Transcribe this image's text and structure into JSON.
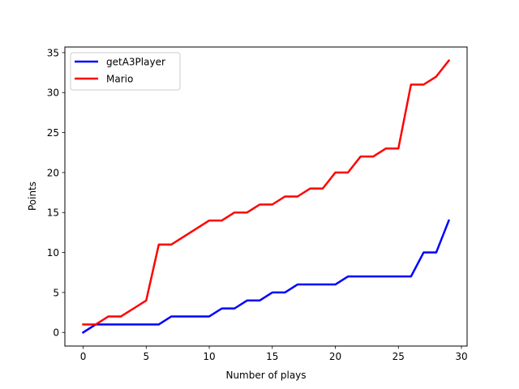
{
  "chart_data": {
    "type": "line",
    "xlabel": "Number of plays",
    "ylabel": "Points",
    "xlim": [
      -1.45,
      30.45
    ],
    "ylim": [
      -1.7,
      35.7
    ],
    "xticks": [
      0,
      5,
      10,
      15,
      20,
      25,
      30
    ],
    "yticks": [
      0,
      5,
      10,
      15,
      20,
      25,
      30,
      35
    ],
    "grid": false,
    "legend_position": "top-left",
    "x": [
      0,
      1,
      2,
      3,
      4,
      5,
      6,
      7,
      8,
      9,
      10,
      11,
      12,
      13,
      14,
      15,
      16,
      17,
      18,
      19,
      20,
      21,
      22,
      23,
      24,
      25,
      26,
      27,
      28,
      29
    ],
    "series": [
      {
        "name": "getA3Player",
        "color": "#0000ff",
        "values": [
          0,
          1,
          1,
          1,
          1,
          1,
          1,
          2,
          2,
          2,
          2,
          3,
          3,
          4,
          4,
          5,
          5,
          6,
          6,
          6,
          6,
          7,
          7,
          7,
          7,
          7,
          7,
          10,
          10,
          14
        ]
      },
      {
        "name": "Mario",
        "color": "#ff0000",
        "values": [
          1,
          1,
          2,
          2,
          3,
          4,
          11,
          11,
          12,
          13,
          14,
          14,
          15,
          15,
          16,
          16,
          17,
          17,
          18,
          18,
          20,
          20,
          22,
          22,
          23,
          23,
          31,
          31,
          32,
          34
        ]
      }
    ]
  }
}
